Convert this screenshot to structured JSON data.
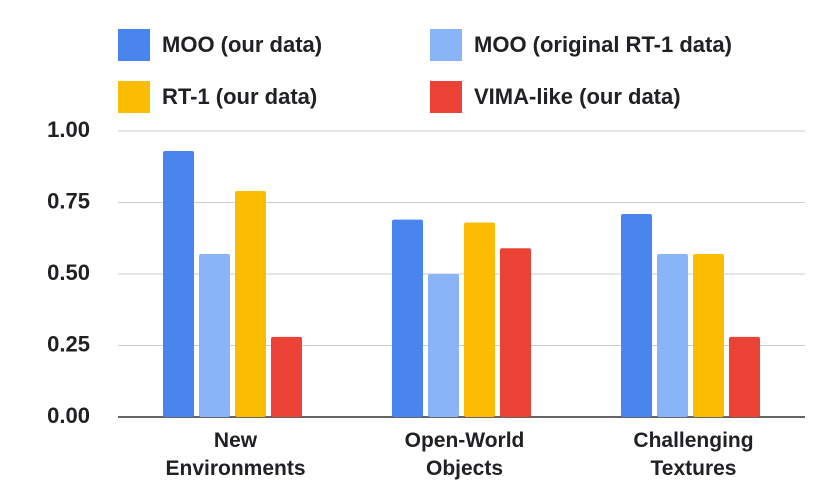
{
  "chart_data": {
    "type": "bar",
    "categories": [
      "New Environments",
      "Open-World Objects",
      "Challenging Textures"
    ],
    "series": [
      {
        "name": "MOO (our data)",
        "color": "#4a84ee",
        "values": [
          0.93,
          0.69,
          0.71
        ]
      },
      {
        "name": "MOO (original RT-1 data)",
        "color": "#8ab4f8",
        "values": [
          0.57,
          0.5,
          0.57
        ]
      },
      {
        "name": "RT-1 (our data)",
        "color": "#fbbc04",
        "values": [
          0.79,
          0.68,
          0.57
        ]
      },
      {
        "name": "VIMA-like (our data)",
        "color": "#ea4335",
        "values": [
          0.28,
          0.59,
          0.28
        ]
      }
    ],
    "ylim": [
      0,
      1
    ],
    "yticks": [
      {
        "value": 0,
        "label": "0.00"
      },
      {
        "value": 0.25,
        "label": "0.25"
      },
      {
        "value": 0.5,
        "label": "0.50"
      },
      {
        "value": 0.75,
        "label": "0.75"
      },
      {
        "value": 1,
        "label": "1.00"
      }
    ],
    "grid": true,
    "legend": "top"
  }
}
